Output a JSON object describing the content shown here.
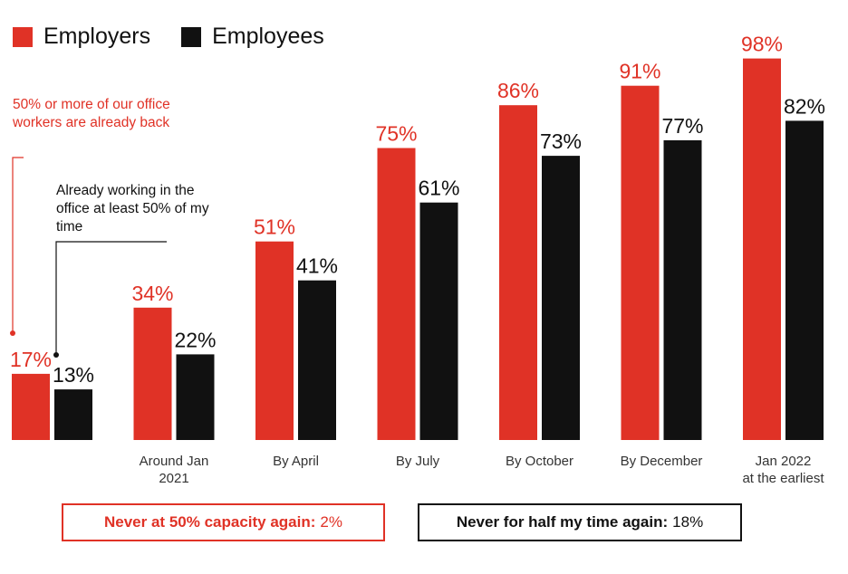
{
  "chart_data": {
    "type": "bar",
    "categories": [
      "",
      "Around Jan\n2021",
      "By April",
      "By July",
      "By October",
      "By December",
      "Jan 2022\nat the earliest"
    ],
    "series": [
      {
        "name": "Employers",
        "color": "#e03226",
        "values": [
          17,
          34,
          51,
          75,
          86,
          91,
          98
        ]
      },
      {
        "name": "Employees",
        "color": "#111111",
        "values": [
          13,
          22,
          41,
          61,
          73,
          77,
          82
        ]
      }
    ],
    "value_suffix": "%",
    "ylim": [
      0,
      100
    ],
    "grid": false,
    "legend": "top-left",
    "annotations": {
      "employers": "50% or more of our office workers are already back",
      "employees": "Already working in the office at least 50% of my time"
    },
    "footnotes": {
      "employers": {
        "label": "Never at 50% capacity again:",
        "value": "2%",
        "color": "#e03226"
      },
      "employees": {
        "label": "Never for half my time again:",
        "value": "18%",
        "color": "#111111"
      }
    }
  }
}
